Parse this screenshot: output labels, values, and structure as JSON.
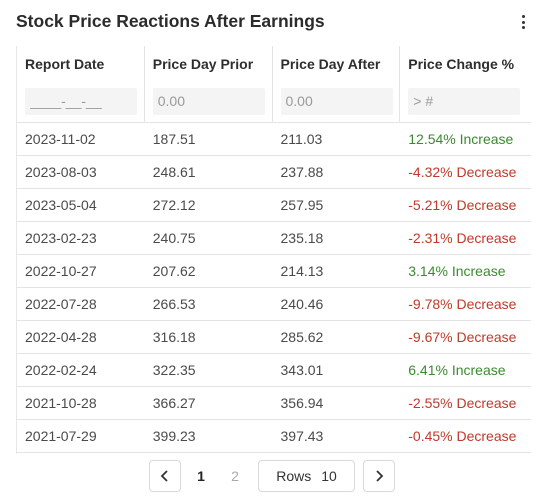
{
  "card": {
    "title": "Stock Price Reactions After Earnings",
    "menu_icon": "vertical-ellipsis-icon"
  },
  "table": {
    "columns": [
      "Report Date",
      "Price Day Prior",
      "Price Day After",
      "Price Change %"
    ],
    "filters": [
      "____-__-__",
      "0.00",
      "0.00",
      "> #"
    ],
    "rows": [
      [
        "2023-11-02",
        "187.51",
        "211.03",
        "12.54% Increase"
      ],
      [
        "2023-08-03",
        "248.61",
        "237.88",
        "-4.32% Decrease"
      ],
      [
        "2023-05-04",
        "272.12",
        "257.95",
        "-5.21% Decrease"
      ],
      [
        "2023-02-23",
        "240.75",
        "235.18",
        "-2.31% Decrease"
      ],
      [
        "2022-10-27",
        "207.62",
        "214.13",
        "3.14% Increase"
      ],
      [
        "2022-07-28",
        "266.53",
        "240.46",
        "-9.78% Decrease"
      ],
      [
        "2022-04-28",
        "316.18",
        "285.62",
        "-9.67% Decrease"
      ],
      [
        "2022-02-24",
        "322.35",
        "343.01",
        "6.41% Increase"
      ],
      [
        "2021-10-28",
        "366.27",
        "356.94",
        "-2.55% Decrease"
      ],
      [
        "2021-07-29",
        "399.23",
        "397.43",
        "-0.45% Decrease"
      ]
    ]
  },
  "pagination": {
    "prev_icon": "chevron-left-icon",
    "next_icon": "chevron-right-icon",
    "pages": [
      "1",
      "2"
    ],
    "current_page": "1",
    "rows_label": "Rows",
    "rows_value": "10"
  },
  "colors": {
    "increase": "#3a8a2e",
    "decrease": "#c0392b"
  }
}
